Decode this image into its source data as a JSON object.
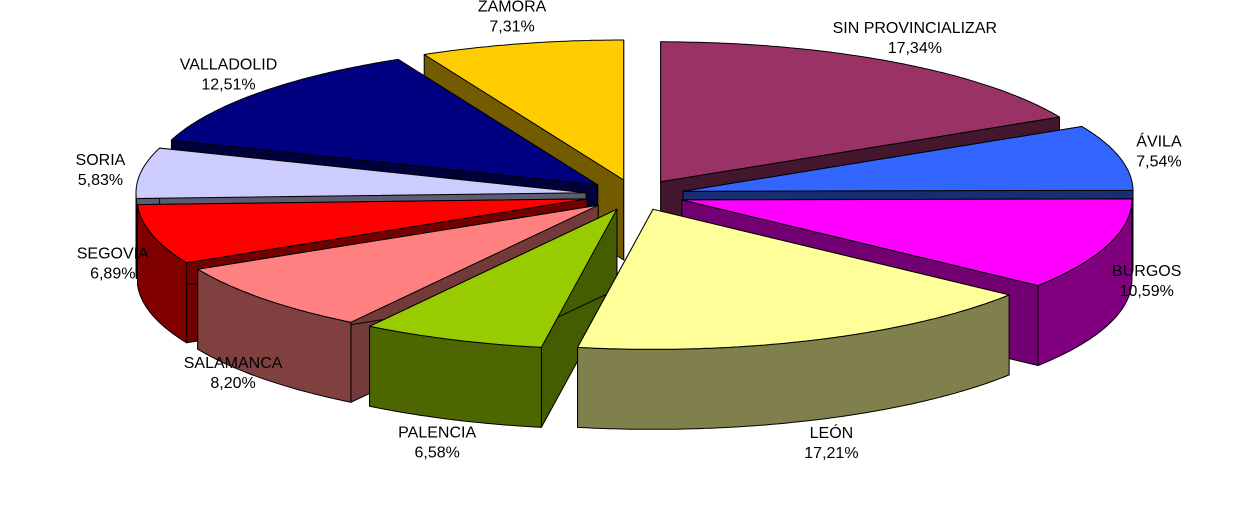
{
  "chart_data": {
    "type": "pie3d",
    "categories": [
      "SIN PROVINCIALIZAR",
      "ÁVILA",
      "BURGOS",
      "LEÓN",
      "PALENCIA",
      "SALAMANCA",
      "SEGOVIA",
      "SORIA",
      "VALLADOLID",
      "ZAMORA"
    ],
    "values": [
      17.34,
      7.54,
      10.59,
      17.21,
      6.58,
      8.2,
      6.89,
      5.83,
      12.51,
      7.31
    ],
    "value_labels": [
      "17,34%",
      "7,54%",
      "10,59%",
      "17,21%",
      "6,58%",
      "8,20%",
      "6,89%",
      "5,83%",
      "12,51%",
      "7,31%"
    ],
    "colors": [
      "#993366",
      "#3366FF",
      "#FF00FF",
      "#FFFF99",
      "#99CC00",
      "#FF8080",
      "#FF0000",
      "#CCCCFF",
      "#000080",
      "#FFCC00"
    ]
  }
}
